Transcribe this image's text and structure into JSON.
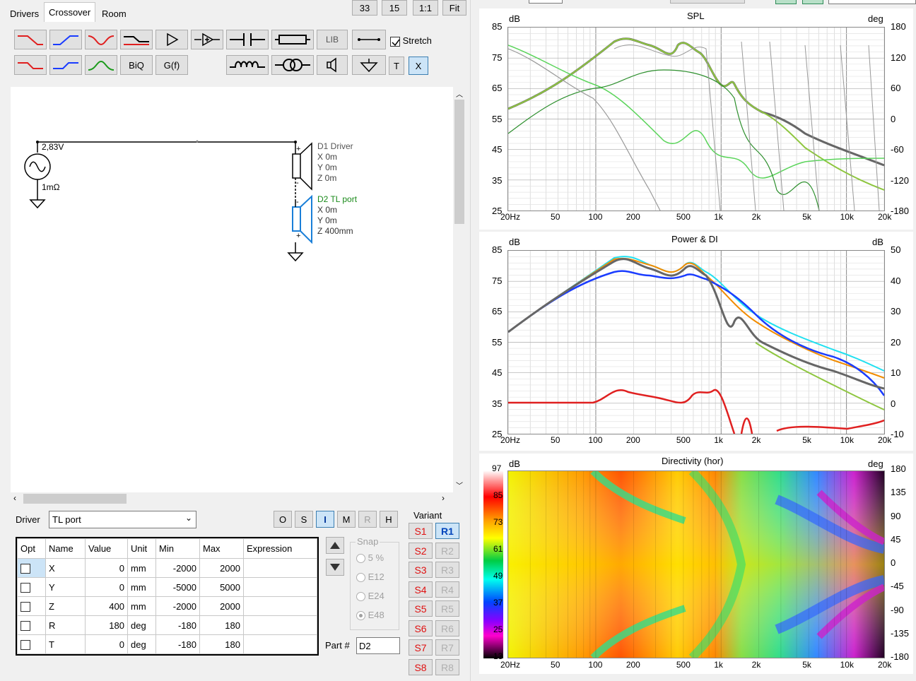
{
  "tabs": [
    "Drivers",
    "Crossover",
    "Room"
  ],
  "active_tab": "Crossover",
  "zoom_buttons": [
    "33",
    "15",
    "1:1",
    "Fit"
  ],
  "toolbar": {
    "biq": "BiQ",
    "gf": "G(f)",
    "lib": "LIB",
    "stretch_label": "Stretch",
    "t": "T",
    "x": "X"
  },
  "schematic": {
    "source_voltage": "2,83V",
    "source_impedance": "1mΩ",
    "d1": {
      "name": "D1 Driver",
      "x": "X 0m",
      "y": "Y 0m",
      "z": "Z 0m",
      "plus": "+",
      "minus": "-"
    },
    "d2": {
      "name": "D2 TL port",
      "x": "X 0m",
      "y": "Y 0m",
      "z": "Z 400mm",
      "plus": "+",
      "minus": "-"
    }
  },
  "driver_panel": {
    "label": "Driver",
    "selected": "TL port",
    "mode_buttons": [
      "O",
      "S",
      "I",
      "M",
      "R",
      "H"
    ],
    "columns": [
      "Opt",
      "Name",
      "Value",
      "Unit",
      "Min",
      "Max",
      "Expression"
    ],
    "rows": [
      {
        "name": "X",
        "value": "0",
        "unit": "mm",
        "min": "-2000",
        "max": "2000"
      },
      {
        "name": "Y",
        "value": "0",
        "unit": "mm",
        "min": "-5000",
        "max": "5000"
      },
      {
        "name": "Z",
        "value": "400",
        "unit": "mm",
        "min": "-2000",
        "max": "2000"
      },
      {
        "name": "R",
        "value": "180",
        "unit": "deg",
        "min": "-180",
        "max": "180"
      },
      {
        "name": "T",
        "value": "0",
        "unit": "deg",
        "min": "-180",
        "max": "180"
      }
    ],
    "snap": {
      "label": "Snap",
      "options": [
        "5 %",
        "E12",
        "E24",
        "E48"
      ],
      "selected": "E48"
    },
    "part_label": "Part #",
    "part_value": "D2"
  },
  "variant": {
    "label": "Variant",
    "s": [
      "S1",
      "S2",
      "S3",
      "S4",
      "S5",
      "S6",
      "S7",
      "S8"
    ],
    "r": [
      "R1",
      "R2",
      "R3",
      "R4",
      "R5",
      "R6",
      "R7",
      "R8"
    ]
  },
  "x_ticks": [
    "20Hz",
    "50",
    "100",
    "200",
    "500",
    "1k",
    "2k",
    "5k",
    "10k",
    "20k"
  ],
  "plots": {
    "spl": {
      "title": "SPL",
      "left_unit": "dB",
      "right_unit": "deg",
      "left_ticks": [
        "85",
        "75",
        "65",
        "55",
        "45",
        "35",
        "25"
      ],
      "right_ticks": [
        "180",
        "120",
        "60",
        "0",
        "-60",
        "-120",
        "-180"
      ]
    },
    "power": {
      "title": "Power & DI",
      "left_unit": "dB",
      "right_unit": "dB",
      "left_ticks": [
        "85",
        "75",
        "65",
        "55",
        "45",
        "35",
        "25"
      ],
      "right_ticks": [
        "50",
        "40",
        "30",
        "20",
        "10",
        "0",
        "-10"
      ]
    },
    "dir": {
      "title": "Directivity (hor)",
      "left_unit": "dB",
      "right_unit": "deg",
      "scale_ticks": [
        "97",
        "85",
        "73",
        "61",
        "49",
        "37",
        "25",
        "13"
      ],
      "right_ticks": [
        "180",
        "135",
        "90",
        "45",
        "0",
        "-45",
        "-90",
        "-135",
        "-180"
      ]
    }
  },
  "colors": {
    "red": "#e02020",
    "blue": "#1a3cff",
    "green": "#1a9a1a",
    "orange": "#f28c00",
    "cyan": "#20e0f0",
    "lime": "#8ec63f",
    "gray": "#666666"
  }
}
